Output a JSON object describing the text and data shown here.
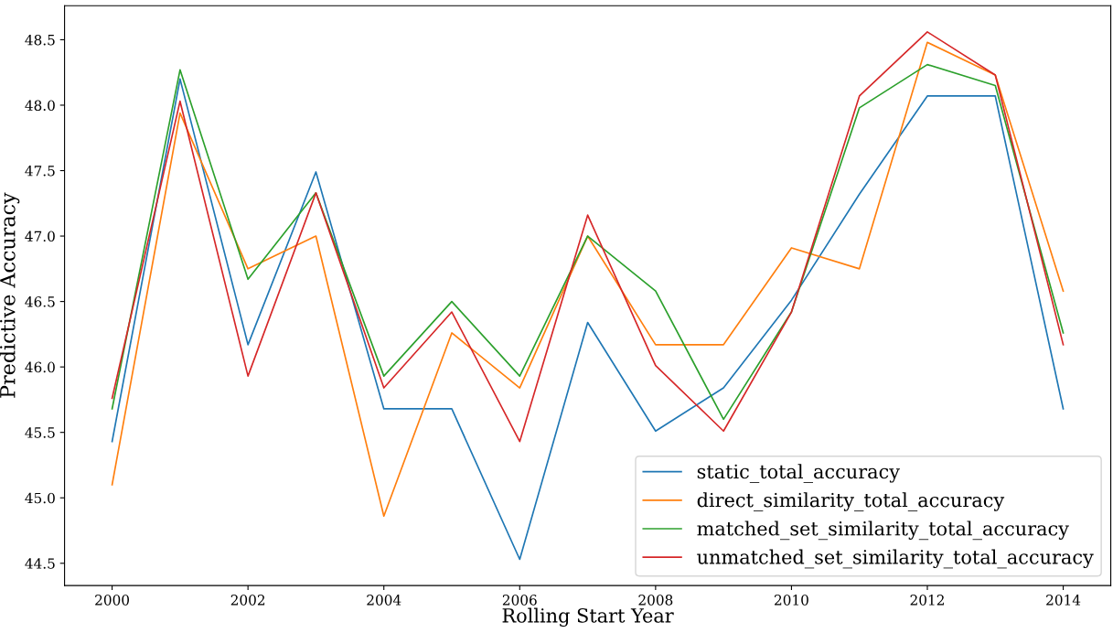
{
  "chart_data": {
    "type": "line",
    "xlabel": "Rolling Start Year",
    "ylabel": "Predictive Accuracy",
    "x": [
      2000,
      2001,
      2002,
      2003,
      2004,
      2005,
      2006,
      2007,
      2008,
      2009,
      2010,
      2011,
      2012,
      2013,
      2014
    ],
    "series": [
      {
        "name": "static_total_accuracy",
        "color": "#1f77b4",
        "values": [
          45.43,
          48.2,
          46.17,
          47.49,
          45.68,
          45.68,
          44.53,
          46.34,
          45.51,
          45.84,
          46.51,
          47.32,
          48.07,
          48.07,
          45.68
        ]
      },
      {
        "name": "direct_similarity_total_accuracy",
        "color": "#ff7f0e",
        "values": [
          45.1,
          47.94,
          46.75,
          47.0,
          44.86,
          46.26,
          45.84,
          47.0,
          46.17,
          46.17,
          46.91,
          46.75,
          48.48,
          48.23,
          46.58
        ]
      },
      {
        "name": "matched_set_similarity_total_accuracy",
        "color": "#2ca02c",
        "values": [
          45.68,
          48.27,
          46.67,
          47.33,
          45.93,
          46.5,
          45.93,
          47.0,
          46.58,
          45.6,
          46.42,
          47.98,
          48.31,
          48.15,
          46.26
        ]
      },
      {
        "name": "unmatched_set_similarity_total_accuracy",
        "color": "#d62728",
        "values": [
          45.76,
          48.03,
          45.93,
          47.33,
          45.84,
          46.42,
          45.43,
          47.16,
          46.01,
          45.51,
          46.42,
          48.07,
          48.56,
          48.23,
          46.17
        ]
      }
    ],
    "xlim": [
      1999.3,
      2014.7
    ],
    "ylim": [
      44.33,
      48.76
    ],
    "xticks": [
      2000,
      2002,
      2004,
      2006,
      2008,
      2010,
      2012,
      2014
    ],
    "yticks": [
      {
        "value": 44.5,
        "label": "44.5"
      },
      {
        "value": 45,
        "label": "45.0"
      },
      {
        "value": 45.5,
        "label": "45.5"
      },
      {
        "value": 46,
        "label": "46.0"
      },
      {
        "value": 46.5,
        "label": "46.5"
      },
      {
        "value": 47,
        "label": "47.0"
      },
      {
        "value": 47.5,
        "label": "47.5"
      },
      {
        "value": 48,
        "label": "48.0"
      },
      {
        "value": 48.5,
        "label": "48.5"
      }
    ],
    "grid": false,
    "legend": "bottom right",
    "marker": "none",
    "line_style": "solid"
  }
}
